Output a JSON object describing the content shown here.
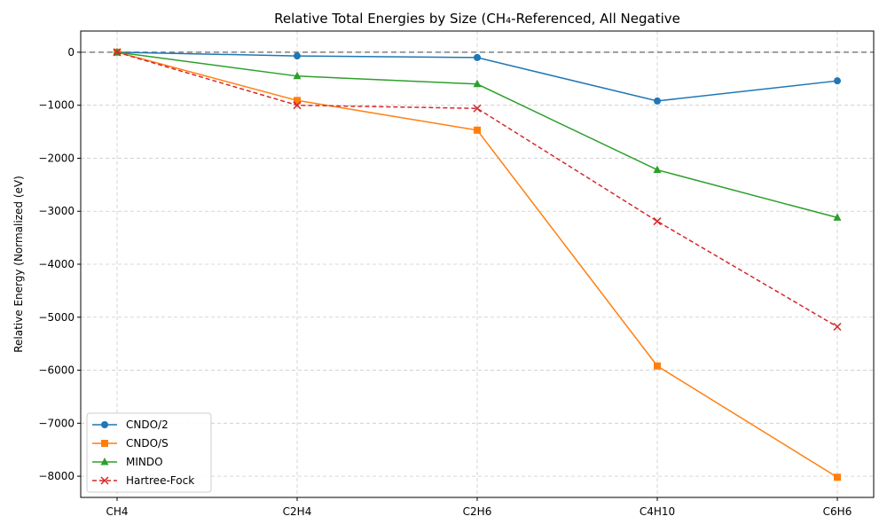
{
  "chart_data": {
    "type": "line",
    "title": "Relative Total Energies by Size (CH₄-Referenced, All Negative",
    "xlabel": "",
    "ylabel": "Relative Energy (Normalized (eV)",
    "categories": [
      "CH4",
      "C2H4",
      "C2H6",
      "C4H10",
      "C6H6"
    ],
    "ylim": [
      -8400,
      400
    ],
    "yticks": [
      0,
      -1000,
      -2000,
      -3000,
      -4000,
      -5000,
      -6000,
      -7000,
      -8000
    ],
    "ytick_labels": [
      "0",
      "−1000",
      "−2000",
      "−3000",
      "−4000",
      "−5000",
      "−6000",
      "−7000",
      "−8000"
    ],
    "grid": true,
    "legend_position": "lower-left",
    "reference_line": {
      "y": 0,
      "style": "dashed",
      "color": "#808080"
    },
    "series": [
      {
        "name": "CNDO/2",
        "values": [
          0,
          -70,
          -100,
          -920,
          -540
        ],
        "color": "#1f77b4",
        "marker": "circle",
        "dash": "solid"
      },
      {
        "name": "CNDO/S",
        "values": [
          0,
          -910,
          -1470,
          -5920,
          -8020
        ],
        "color": "#ff7f0e",
        "marker": "square",
        "dash": "solid"
      },
      {
        "name": "MINDO",
        "values": [
          0,
          -450,
          -600,
          -2220,
          -3120
        ],
        "color": "#2ca02c",
        "marker": "triangle",
        "dash": "solid"
      },
      {
        "name": "Hartree-Fock",
        "values": [
          0,
          -1000,
          -1060,
          -3190,
          -5180
        ],
        "color": "#d62728",
        "marker": "x",
        "dash": "dashed"
      }
    ]
  }
}
